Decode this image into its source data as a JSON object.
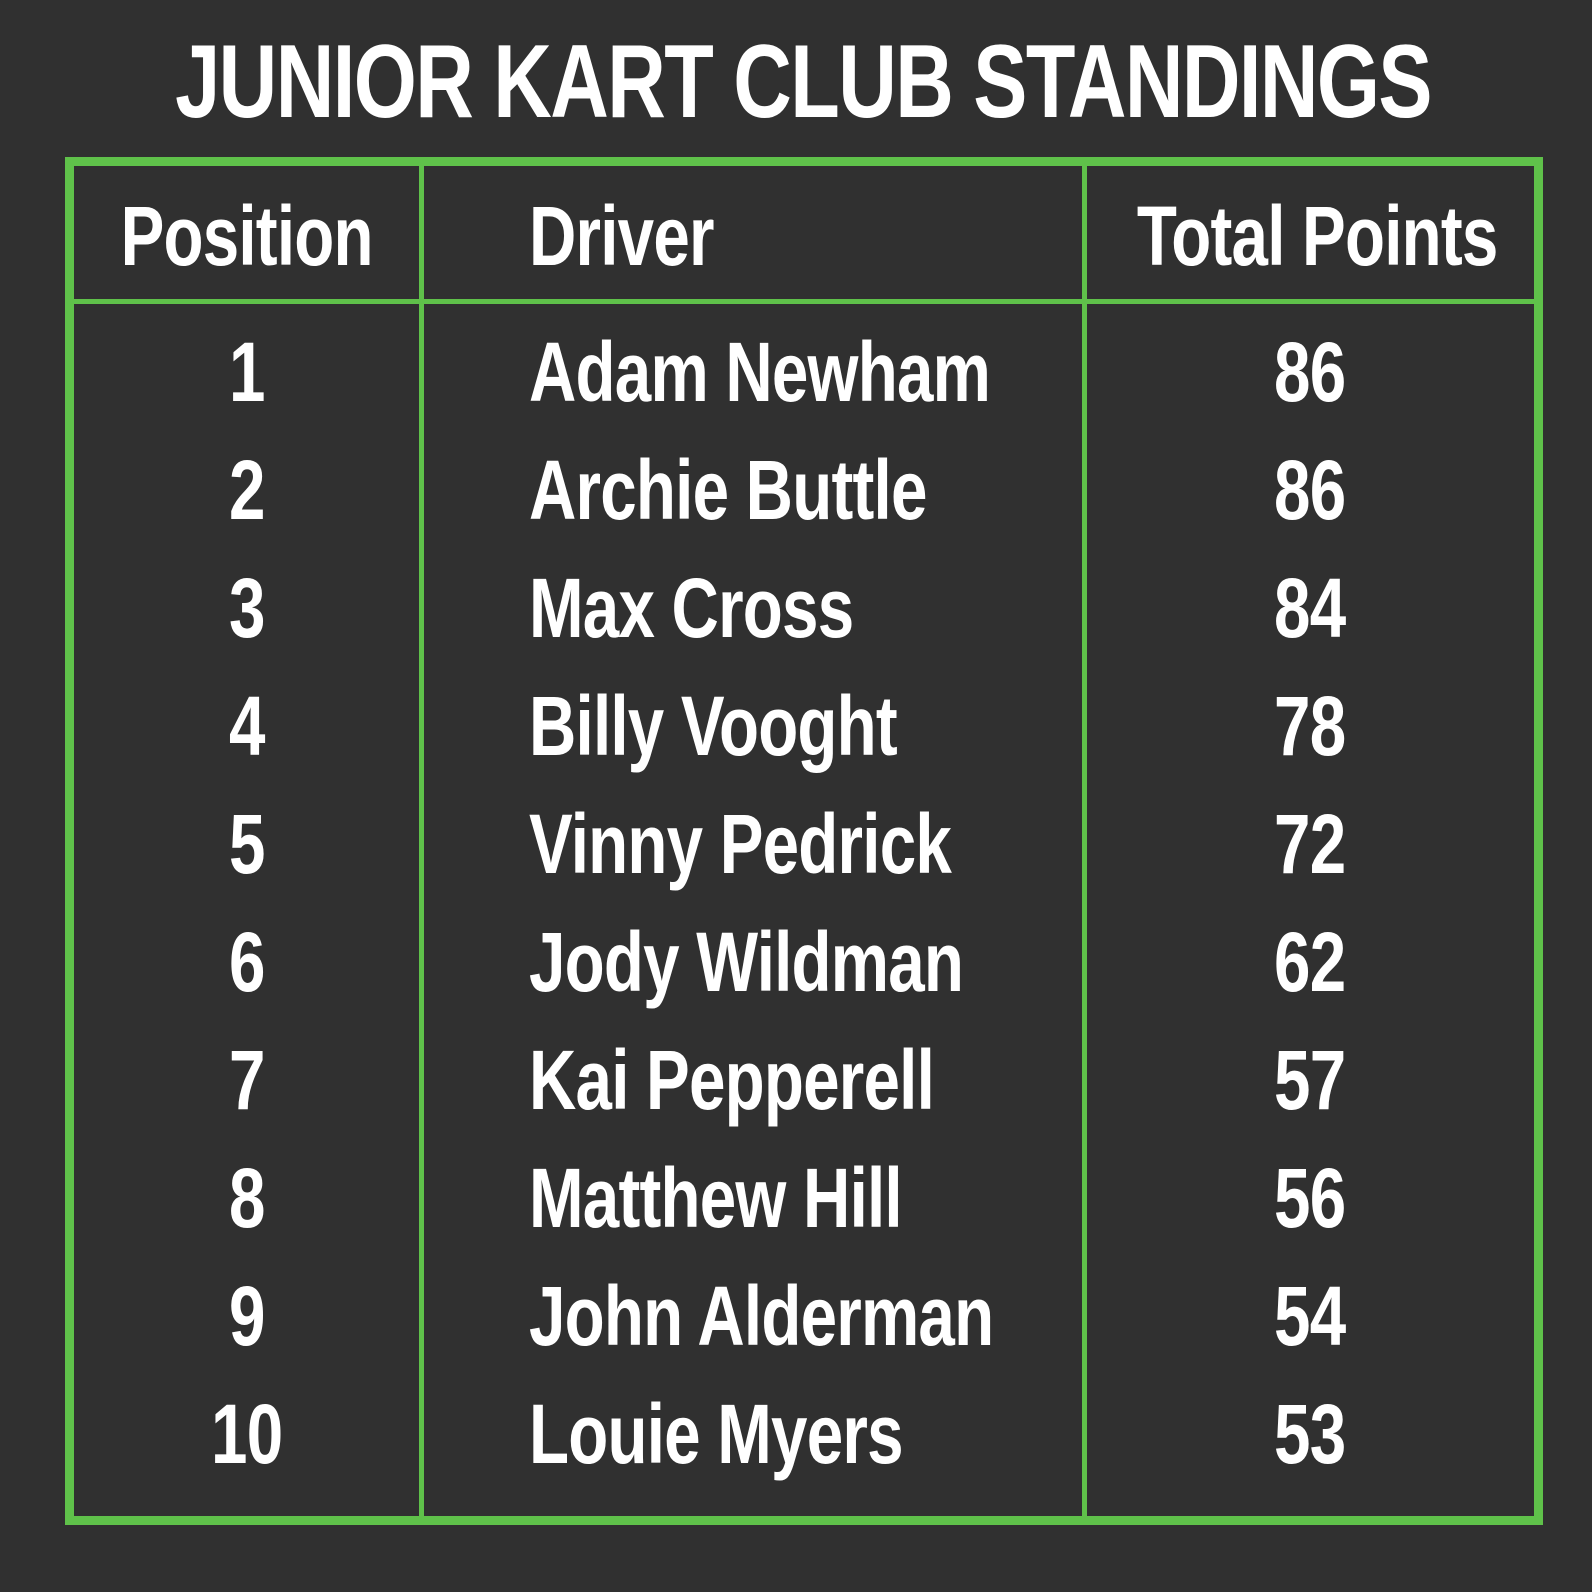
{
  "title": "JUNIOR KART CLUB STANDINGS",
  "colors": {
    "background": "#303030",
    "border": "#5fc14a",
    "text": "#ffffff"
  },
  "chart_data": {
    "type": "table",
    "title": "JUNIOR KART CLUB STANDINGS",
    "columns": [
      "Position",
      "Driver",
      "Total Points"
    ],
    "rows": [
      {
        "position": "1",
        "driver": "Adam Newham",
        "points": "86"
      },
      {
        "position": "2",
        "driver": "Archie Buttle",
        "points": "86"
      },
      {
        "position": "3",
        "driver": "Max Cross",
        "points": "84"
      },
      {
        "position": "4",
        "driver": "Billy Vooght",
        "points": "78"
      },
      {
        "position": "5",
        "driver": "Vinny Pedrick",
        "points": "72"
      },
      {
        "position": "6",
        "driver": "Jody Wildman",
        "points": "62"
      },
      {
        "position": "7",
        "driver": "Kai Pepperell",
        "points": "57"
      },
      {
        "position": "8",
        "driver": "Matthew Hill",
        "points": "56"
      },
      {
        "position": "9",
        "driver": "John Alderman",
        "points": "54"
      },
      {
        "position": "10",
        "driver": "Louie Myers",
        "points": "53"
      }
    ]
  }
}
